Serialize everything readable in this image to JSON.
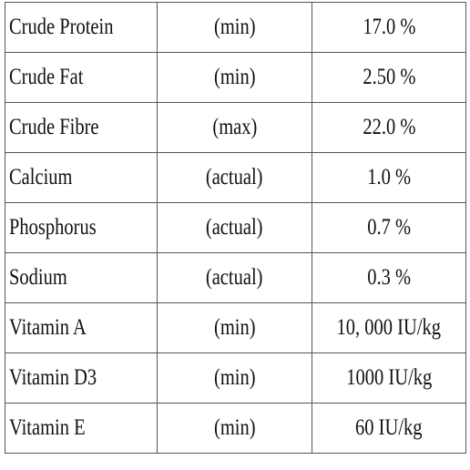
{
  "table": {
    "rows": [
      [
        "Crude Protein",
        "(min)",
        "17.0 %"
      ],
      [
        "Crude Fat",
        "(min)",
        "2.50 %"
      ],
      [
        "Crude Fibre",
        "(max)",
        "22.0 %"
      ],
      [
        "Calcium",
        "(actual)",
        "1.0 %"
      ],
      [
        "Phosphorus",
        "(actual)",
        "0.7 %"
      ],
      [
        "Sodium",
        "(actual)",
        "0.3 %"
      ],
      [
        "Vitamin A",
        "(min)",
        "10, 000 IU/kg"
      ],
      [
        "Vitamin D3",
        "(min)",
        "1000 IU/kg"
      ],
      [
        "Vitamin E",
        "(min)",
        "60 IU/kg"
      ]
    ]
  }
}
